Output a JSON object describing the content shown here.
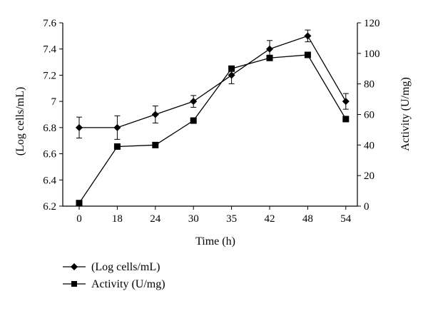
{
  "chart_data": {
    "type": "line",
    "xlabel": "Time (h)",
    "x_categories": [
      "0",
      "18",
      "24",
      "30",
      "35",
      "42",
      "48",
      "54"
    ],
    "y_left": {
      "label": "(Log cells/mL)",
      "ylim": [
        6.2,
        7.6
      ],
      "ticks": [
        "6.2",
        "6.4",
        "6.6",
        "6.8",
        "7",
        "7.2",
        "7.4",
        "7.6"
      ]
    },
    "y_right": {
      "label": "Activity (U/mg)",
      "ylim": [
        0,
        120
      ],
      "ticks": [
        "0",
        "20",
        "40",
        "60",
        "80",
        "100",
        "120"
      ]
    },
    "series": [
      {
        "name": "(Log cells/mL)",
        "axis": "left",
        "marker": "diamond",
        "values": [
          6.8,
          6.8,
          6.9,
          7.0,
          7.2,
          7.4,
          7.5,
          7.0
        ],
        "error": [
          0.08,
          0.09,
          0.065,
          0.045,
          0.065,
          0.065,
          0.045,
          0.06
        ]
      },
      {
        "name": "Activity (U/mg)",
        "axis": "right",
        "marker": "square",
        "values": [
          2,
          39,
          40,
          56,
          90,
          97,
          99,
          57
        ]
      }
    ],
    "grid": false,
    "legend_position": "bottom-left"
  }
}
